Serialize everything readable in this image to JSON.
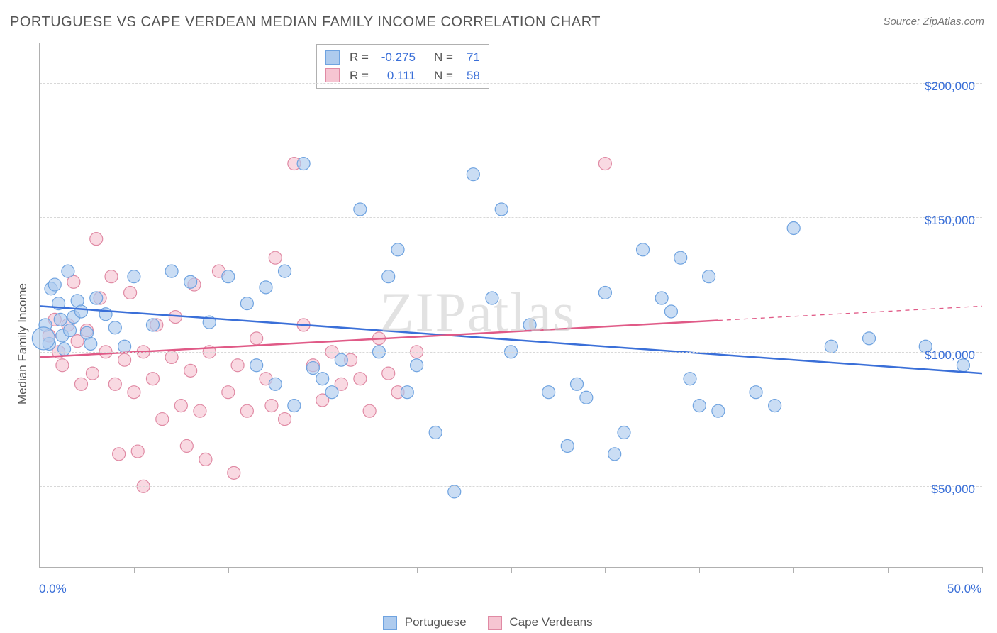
{
  "title": "PORTUGUESE VS CAPE VERDEAN MEDIAN FAMILY INCOME CORRELATION CHART",
  "source": "Source: ZipAtlas.com",
  "watermark": "ZIPatlas",
  "ylabel": "Median Family Income",
  "chart": {
    "type": "scatter",
    "background_color": "#ffffff",
    "grid_color": "#d8d8d8",
    "axis_color": "#b0b0b0",
    "tick_label_color": "#3a6fd8",
    "xlim": [
      0,
      50
    ],
    "ylim": [
      20000,
      215000
    ],
    "ytick_values": [
      50000,
      100000,
      150000,
      200000
    ],
    "ytick_labels": [
      "$50,000",
      "$100,000",
      "$150,000",
      "$200,000"
    ],
    "xtick_values": [
      0,
      5,
      10,
      15,
      20,
      25,
      30,
      35,
      40,
      45,
      50
    ],
    "xtick_labels_shown": {
      "0": "0.0%",
      "50": "50.0%"
    },
    "marker_radius": 9,
    "marker_radius_large": 16,
    "marker_stroke_width": 1.2,
    "line_width": 2.5,
    "series": [
      {
        "name": "Portuguese",
        "fill": "#aecbee",
        "stroke": "#6fa3e0",
        "line_color": "#3a6fd8",
        "stats": {
          "R": "-0.275",
          "N": "71"
        },
        "regression": {
          "x1": 0,
          "y1": 117000,
          "x2": 50,
          "y2": 92000,
          "dash_from_x": null
        },
        "points": [
          [
            0.3,
            110000
          ],
          [
            0.5,
            103000
          ],
          [
            0.6,
            123500
          ],
          [
            0.8,
            125000
          ],
          [
            1.0,
            118000
          ],
          [
            1.1,
            112000
          ],
          [
            1.2,
            106000
          ],
          [
            1.3,
            101000
          ],
          [
            1.5,
            130000
          ],
          [
            1.6,
            108000
          ],
          [
            1.8,
            113000
          ],
          [
            2.0,
            119000
          ],
          [
            2.2,
            115000
          ],
          [
            2.5,
            107000
          ],
          [
            2.7,
            103000
          ],
          [
            3.0,
            120000
          ],
          [
            3.5,
            114000
          ],
          [
            4.0,
            109000
          ],
          [
            4.5,
            102000
          ],
          [
            5.0,
            128000
          ],
          [
            6.0,
            110000
          ],
          [
            7.0,
            130000
          ],
          [
            8.0,
            126000
          ],
          [
            9.0,
            111000
          ],
          [
            10.0,
            128000
          ],
          [
            11.0,
            118000
          ],
          [
            11.5,
            95000
          ],
          [
            12.0,
            124000
          ],
          [
            12.5,
            88000
          ],
          [
            13.0,
            130000
          ],
          [
            13.5,
            80000
          ],
          [
            14.0,
            170000
          ],
          [
            14.5,
            94000
          ],
          [
            15.0,
            90000
          ],
          [
            15.5,
            85000
          ],
          [
            16.0,
            97000
          ],
          [
            17.0,
            153000
          ],
          [
            18.0,
            100000
          ],
          [
            18.5,
            128000
          ],
          [
            19.0,
            138000
          ],
          [
            19.5,
            85000
          ],
          [
            20.0,
            95000
          ],
          [
            21.0,
            70000
          ],
          [
            22.0,
            48000
          ],
          [
            23.0,
            166000
          ],
          [
            24.0,
            120000
          ],
          [
            24.5,
            153000
          ],
          [
            25.0,
            100000
          ],
          [
            26.0,
            110000
          ],
          [
            27.0,
            85000
          ],
          [
            28.0,
            65000
          ],
          [
            28.5,
            88000
          ],
          [
            29.0,
            83000
          ],
          [
            30.0,
            122000
          ],
          [
            30.5,
            62000
          ],
          [
            31.0,
            70000
          ],
          [
            32.0,
            138000
          ],
          [
            33.0,
            120000
          ],
          [
            33.5,
            115000
          ],
          [
            34.0,
            135000
          ],
          [
            34.5,
            90000
          ],
          [
            35.0,
            80000
          ],
          [
            35.5,
            128000
          ],
          [
            36.0,
            78000
          ],
          [
            38.0,
            85000
          ],
          [
            39.0,
            80000
          ],
          [
            40.0,
            146000
          ],
          [
            42.0,
            102000
          ],
          [
            44.0,
            105000
          ],
          [
            47.0,
            102000
          ],
          [
            49.0,
            95000
          ]
        ],
        "large_points": [
          [
            0.2,
            105000
          ]
        ]
      },
      {
        "name": "Cape Verdeans",
        "fill": "#f6c5d2",
        "stroke": "#e08aa4",
        "line_color": "#e05a87",
        "stats": {
          "R": "0.111",
          "N": "58"
        },
        "regression": {
          "x1": 0,
          "y1": 98000,
          "x2": 50,
          "y2": 117000,
          "dash_from_x": 36
        },
        "points": [
          [
            0.5,
            106000
          ],
          [
            0.8,
            112000
          ],
          [
            1.0,
            100000
          ],
          [
            1.2,
            95000
          ],
          [
            1.5,
            110000
          ],
          [
            1.8,
            126000
          ],
          [
            2.0,
            104000
          ],
          [
            2.2,
            88000
          ],
          [
            2.5,
            108000
          ],
          [
            2.8,
            92000
          ],
          [
            3.0,
            142000
          ],
          [
            3.2,
            120000
          ],
          [
            3.5,
            100000
          ],
          [
            3.8,
            128000
          ],
          [
            4.0,
            88000
          ],
          [
            4.2,
            62000
          ],
          [
            4.5,
            97000
          ],
          [
            4.8,
            122000
          ],
          [
            5.0,
            85000
          ],
          [
            5.2,
            63000
          ],
          [
            5.5,
            100000
          ],
          [
            6.0,
            90000
          ],
          [
            6.2,
            110000
          ],
          [
            6.5,
            75000
          ],
          [
            7.0,
            98000
          ],
          [
            7.2,
            113000
          ],
          [
            7.5,
            80000
          ],
          [
            7.8,
            65000
          ],
          [
            8.0,
            93000
          ],
          [
            8.2,
            125000
          ],
          [
            8.5,
            78000
          ],
          [
            8.8,
            60000
          ],
          [
            9.0,
            100000
          ],
          [
            9.5,
            130000
          ],
          [
            10.0,
            85000
          ],
          [
            10.3,
            55000
          ],
          [
            10.5,
            95000
          ],
          [
            11.0,
            78000
          ],
          [
            11.5,
            105000
          ],
          [
            12.0,
            90000
          ],
          [
            12.3,
            80000
          ],
          [
            12.5,
            135000
          ],
          [
            13.0,
            75000
          ],
          [
            13.5,
            170000
          ],
          [
            14.0,
            110000
          ],
          [
            14.5,
            95000
          ],
          [
            15.0,
            82000
          ],
          [
            15.5,
            100000
          ],
          [
            16.0,
            88000
          ],
          [
            16.5,
            97000
          ],
          [
            17.0,
            90000
          ],
          [
            17.5,
            78000
          ],
          [
            18.0,
            105000
          ],
          [
            18.5,
            92000
          ],
          [
            19.0,
            85000
          ],
          [
            20.0,
            100000
          ],
          [
            30.0,
            170000
          ],
          [
            5.5,
            50000
          ]
        ]
      }
    ]
  },
  "stats_legend": {
    "r_label": "R =",
    "n_label": "N ="
  },
  "bottom_legend": {
    "items": [
      {
        "label": "Portuguese",
        "fill": "#aecbee",
        "stroke": "#6fa3e0"
      },
      {
        "label": "Cape Verdeans",
        "fill": "#f6c5d2",
        "stroke": "#e08aa4"
      }
    ]
  }
}
